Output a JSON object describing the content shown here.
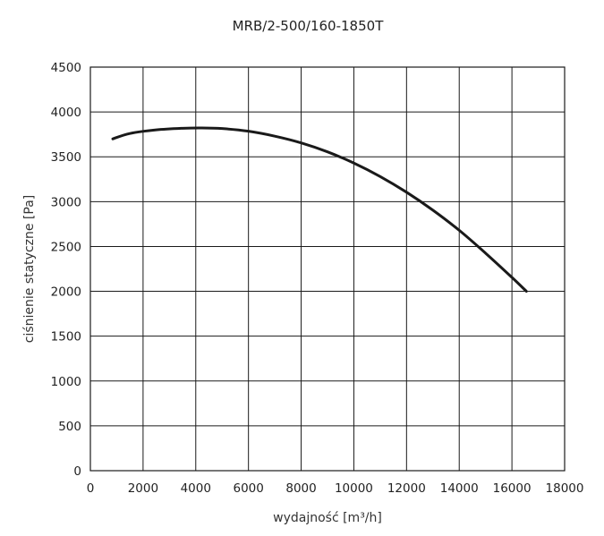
{
  "chart_data": {
    "type": "line",
    "title": "MRB/2-500/160-1850T",
    "xlabel": "wydajność [m³/h]",
    "ylabel": "ciśnienie statyczne [Pa]",
    "xlim": [
      0,
      18000
    ],
    "ylim": [
      0,
      4500
    ],
    "x_ticks": [
      0,
      2000,
      4000,
      6000,
      8000,
      10000,
      12000,
      14000,
      16000,
      18000
    ],
    "y_ticks": [
      0,
      500,
      1000,
      1500,
      2000,
      2500,
      3000,
      3500,
      4000,
      4500
    ],
    "grid": true,
    "series": [
      {
        "x": [
          850,
          1500,
          2500,
          3500,
          4200,
          5000,
          6000,
          7000,
          8000,
          9000,
          10000,
          11000,
          12000,
          13000,
          14000,
          15000,
          16000,
          16550
        ],
        "y": [
          3700,
          3760,
          3800,
          3818,
          3822,
          3815,
          3785,
          3730,
          3655,
          3555,
          3430,
          3280,
          3105,
          2905,
          2680,
          2425,
          2155,
          2000
        ],
        "color": "#1a1a1a"
      }
    ]
  }
}
